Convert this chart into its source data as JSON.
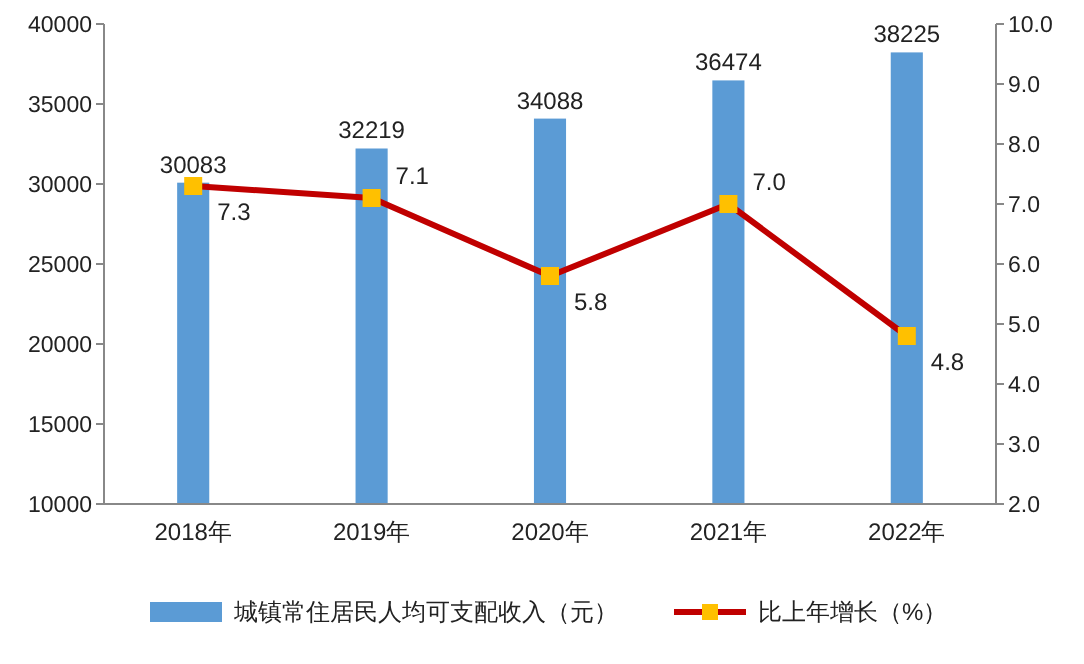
{
  "chart_data": {
    "type": "bar",
    "categories": [
      "2018年",
      "2019年",
      "2020年",
      "2021年",
      "2022年"
    ],
    "series": [
      {
        "name": "城镇常住居民人均可支配收入（元）",
        "color": "#5b9bd5",
        "values": [
          30083,
          32219,
          34088,
          36474,
          38225
        ],
        "value_labels": [
          "30083",
          "32219",
          "34088",
          "36474",
          "38225"
        ]
      },
      {
        "name": "比上年增长（%）",
        "type": "line",
        "axis": "y2",
        "color": "#c00000",
        "marker": "square",
        "values": [
          7.3,
          7.1,
          5.8,
          7.0,
          4.8
        ],
        "value_labels": [
          "7.3",
          "7.1",
          "5.8",
          "7.0",
          "4.8"
        ]
      }
    ],
    "ylim": [
      10000,
      40000
    ],
    "yticks": [
      10000,
      15000,
      20000,
      25000,
      30000,
      35000,
      40000
    ],
    "y2lim": [
      2,
      10
    ],
    "y2ticks": [
      {
        "value": 2,
        "label": "2.0"
      },
      {
        "value": 3,
        "label": "3.0"
      },
      {
        "value": 4,
        "label": "4.0"
      },
      {
        "value": 5,
        "label": "5.0"
      },
      {
        "value": 6,
        "label": "6.0"
      },
      {
        "value": 7,
        "label": "7.0"
      },
      {
        "value": 8,
        "label": "8.0"
      },
      {
        "value": 9,
        "label": "9.0"
      },
      {
        "value": 10,
        "label": "10.0"
      }
    ],
    "grid": false,
    "legend": "bottom"
  }
}
